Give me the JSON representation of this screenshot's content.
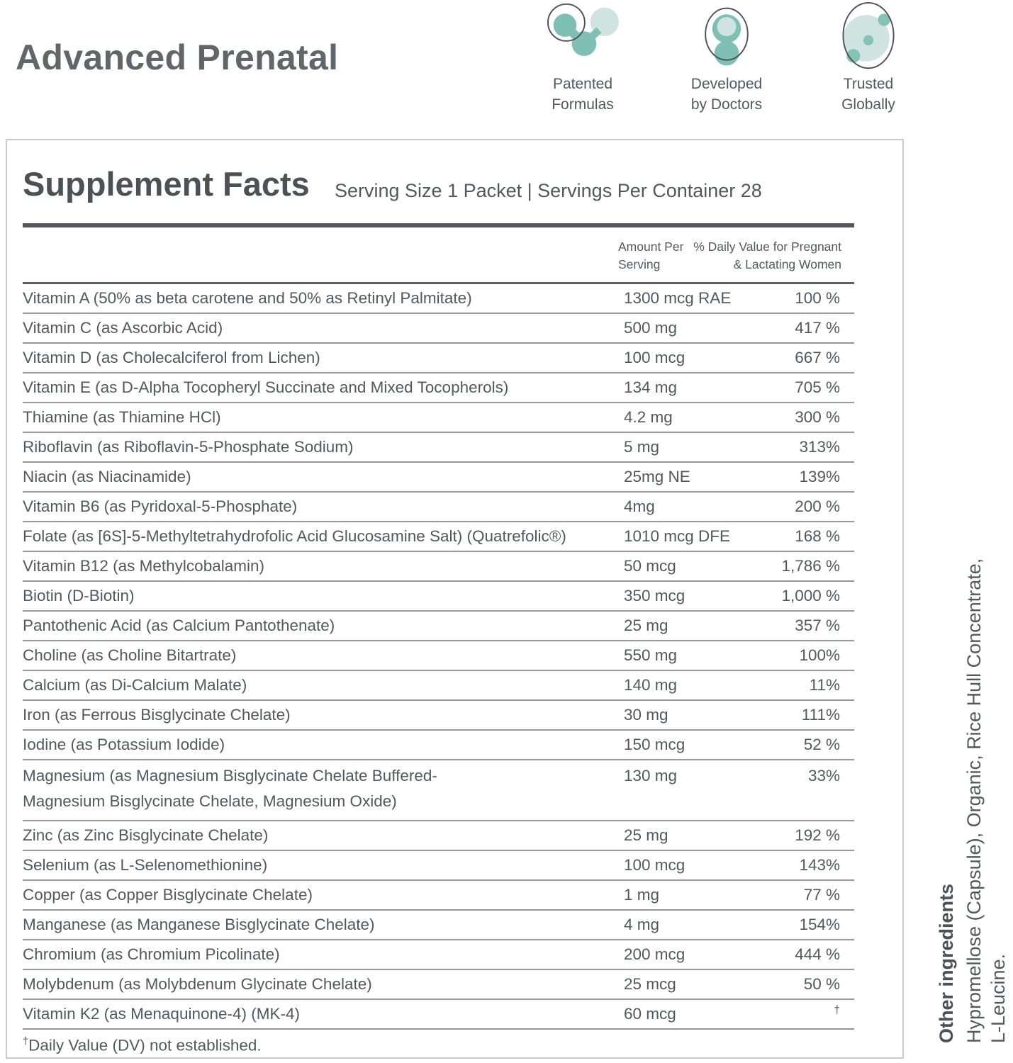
{
  "page": {
    "product_title": "Advanced Prenatal"
  },
  "colors": {
    "teal": "#7ec0b5",
    "teal_light": "#cfe4e0",
    "icon_outline": "#4e5256",
    "text": "#54585c",
    "row_line": "#95979a",
    "box_border": "#c9cbcc"
  },
  "badges": [
    {
      "icon": "molecule-icon",
      "label": "Patented\nFormulas"
    },
    {
      "icon": "doctor-icon",
      "label": "Developed\nby Doctors"
    },
    {
      "icon": "globe-icon",
      "label": "Trusted\nGlobally"
    }
  ],
  "supplement_facts": {
    "title": "Supplement Facts",
    "serving_info": "Serving Size 1 Packet | Servings Per Container 28",
    "columns": {
      "amount": "Amount Per\nServing",
      "daily_value": "% Daily Value for Pregnant\n& Lactating Women"
    },
    "rows": [
      {
        "name": "Vitamin A (50% as beta carotene and 50% as Retinyl Palmitate)",
        "amount": "1300 mcg RAE",
        "dv": "100 %"
      },
      {
        "name": "Vitamin C (as Ascorbic Acid)",
        "amount": "500 mg",
        "dv": "417 %"
      },
      {
        "name": "Vitamin D (as Cholecalciferol from Lichen)",
        "amount": "100 mcg",
        "dv": "667 %"
      },
      {
        "name": "Vitamin E (as D-Alpha Tocopheryl Succinate and Mixed Tocopherols)",
        "amount": "134 mg",
        "dv": "705 %"
      },
      {
        "name": "Thiamine (as Thiamine HCl)",
        "amount": "4.2 mg",
        "dv": "300 %"
      },
      {
        "name": "Riboflavin (as Riboflavin-5-Phosphate Sodium)",
        "amount": "5 mg",
        "dv": "313%"
      },
      {
        "name": "Niacin (as Niacinamide)",
        "amount": "25mg NE",
        "dv": "139%"
      },
      {
        "name": "Vitamin B6 (as Pyridoxal-5-Phosphate)",
        "amount": "4mg",
        "dv": "200 %"
      },
      {
        "name": "Folate (as [6S]-5-Methyltetrahydrofolic Acid Glucosamine Salt) (Quatrefolic®)",
        "amount": "1010 mcg DFE",
        "dv": "168 %"
      },
      {
        "name": "Vitamin B12 (as Methylcobalamin)",
        "amount": "50 mcg",
        "dv": "1,786 %"
      },
      {
        "name": "Biotin (D-Biotin)",
        "amount": "350 mcg",
        "dv": "1,000 %"
      },
      {
        "name": "Pantothenic Acid (as Calcium Pantothenate)",
        "amount": "25 mg",
        "dv": "357 %"
      },
      {
        "name": "Choline (as Choline Bitartrate)",
        "amount": "550 mg",
        "dv": "100%"
      },
      {
        "name": "Calcium (as Di-Calcium Malate)",
        "amount": "140 mg",
        "dv": "11%"
      },
      {
        "name": "Iron (as Ferrous Bisglycinate Chelate)",
        "amount": "30 mg",
        "dv": "111%"
      },
      {
        "name": "Iodine (as Potassium Iodide)",
        "amount": "150 mcg",
        "dv": "52 %"
      },
      {
        "name": "Magnesium (as Magnesium Bisglycinate Chelate Buffered-\nMagnesium Bisglycinate Chelate, Magnesium Oxide)",
        "amount": "130 mg",
        "dv": "33%"
      },
      {
        "name": "Zinc (as Zinc Bisglycinate Chelate)",
        "amount": "25 mg",
        "dv": "192 %"
      },
      {
        "name": "Selenium (as L-Selenomethionine)",
        "amount": "100 mcg",
        "dv": "143%"
      },
      {
        "name": "Copper (as Copper Bisglycinate Chelate)",
        "amount": "1 mg",
        "dv": "77 %"
      },
      {
        "name": "Manganese (as Manganese Bisglycinate Chelate)",
        "amount": "4 mg",
        "dv": "154%"
      },
      {
        "name": "Chromium (as Chromium Picolinate)",
        "amount": "200 mcg",
        "dv": "444 %"
      },
      {
        "name": "Molybdenum (as Molybdenum Glycinate Chelate)",
        "amount": "25 mcg",
        "dv": "50 %"
      },
      {
        "name": "Vitamin K2 (as Menaquinone-4) (MK-4)",
        "amount": "60 mcg",
        "dv": "†",
        "dv_sup": true
      }
    ],
    "footnote_mark": "†",
    "footnote_text": "Daily Value (DV) not established."
  },
  "other_ingredients": {
    "heading": "Other ingredients",
    "text": "Hypromellose (Capsule), Organic, Rice Hull Concentrate,\nL-Leucine."
  }
}
